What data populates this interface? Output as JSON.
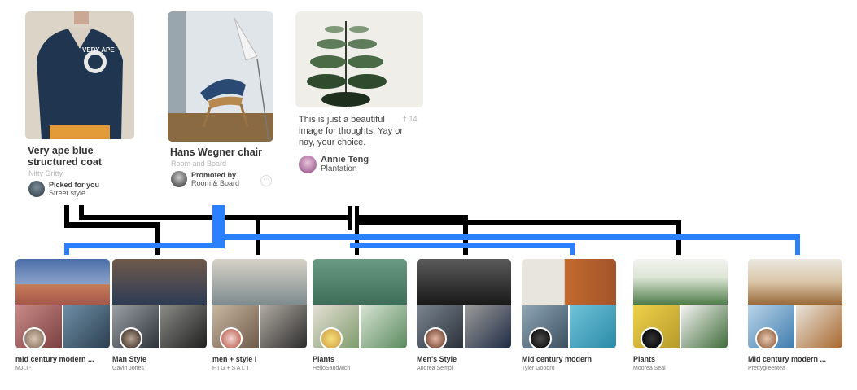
{
  "pins": [
    {
      "title": "Very ape blue structured coat",
      "source": "Nitty Gritty",
      "attr_line1": "Picked for you",
      "attr_line2": "Street style",
      "image_icon": "jacket-photo"
    },
    {
      "title": "Hans Wegner chair",
      "source": "Room and Board",
      "attr_line1": "Promoted by",
      "attr_line2": "Room & Board",
      "more_label": "···",
      "image_icon": "chair-photo"
    },
    {
      "description": "This is just a beautiful image for thoughts. Yay or nay, your choice.",
      "repin_icon": "pin-icon",
      "repin_count": "14",
      "attr_line1": "Annie Teng",
      "attr_line2": "Plantation",
      "image_icon": "plant-photo"
    }
  ],
  "boards": [
    {
      "name": "mid century modern ...",
      "owner": "MJLI -"
    },
    {
      "name": "Man Style",
      "owner": "Gavin Jones"
    },
    {
      "name": "men + style l",
      "owner": "F I G + S A L T"
    },
    {
      "name": "Plants",
      "owner": "HelloSandwich"
    },
    {
      "name": "Men's Style",
      "owner": "Andrea Sempi"
    },
    {
      "name": "Mid century modern",
      "owner": "Tyler Goodro"
    },
    {
      "name": "Plants",
      "owner": "Moorea Seal"
    },
    {
      "name": "Mid century modern ...",
      "owner": "Prettygreentea"
    }
  ],
  "colors": {
    "connector_black": "#000000",
    "connector_blue": "#2b80ff"
  }
}
